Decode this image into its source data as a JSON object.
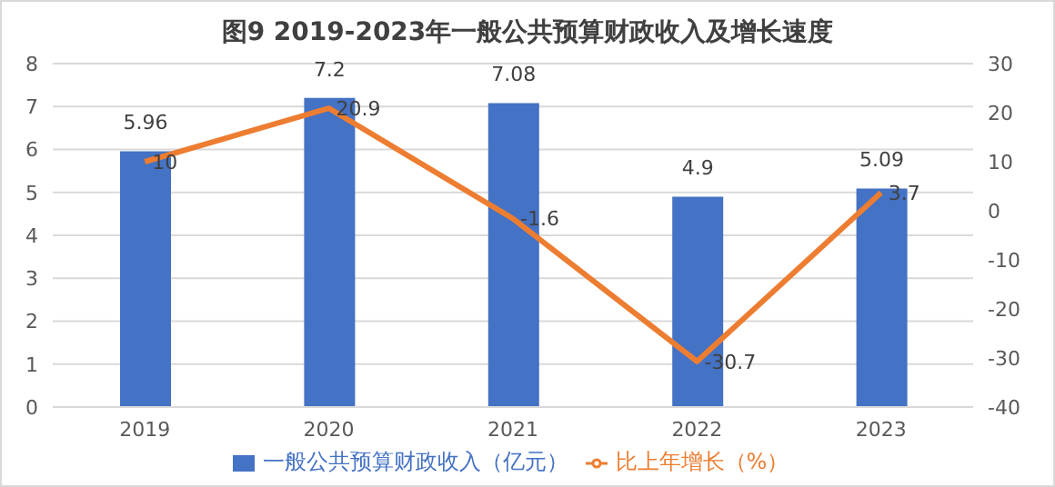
{
  "chart_data": {
    "type": "bar",
    "title": "图9 2019-2023年一般公共预算财政收入及增长速度",
    "categories": [
      "2019",
      "2020",
      "2021",
      "2022",
      "2023"
    ],
    "series": [
      {
        "name": "一般公共预算财政收入（亿元）",
        "color": "#4472c4",
        "values": [
          5.96,
          7.2,
          7.08,
          4.9,
          5.09
        ]
      },
      {
        "name": "比上年增长（%）",
        "type": "line",
        "axis": "y2",
        "color": "#ed7d31",
        "values": [
          10,
          20.9,
          -1.6,
          -30.7,
          3.7
        ]
      }
    ],
    "ylim": [
      0,
      8
    ],
    "yticks": [
      0,
      1,
      2,
      3,
      4,
      5,
      6,
      7,
      8
    ],
    "y2lim": [
      -40,
      30
    ],
    "y2ticks": [
      -40,
      -30,
      -20,
      -10,
      0,
      10,
      20,
      30
    ],
    "grid": "y",
    "legend": "bottom",
    "data_labels": true,
    "marker": "none"
  }
}
